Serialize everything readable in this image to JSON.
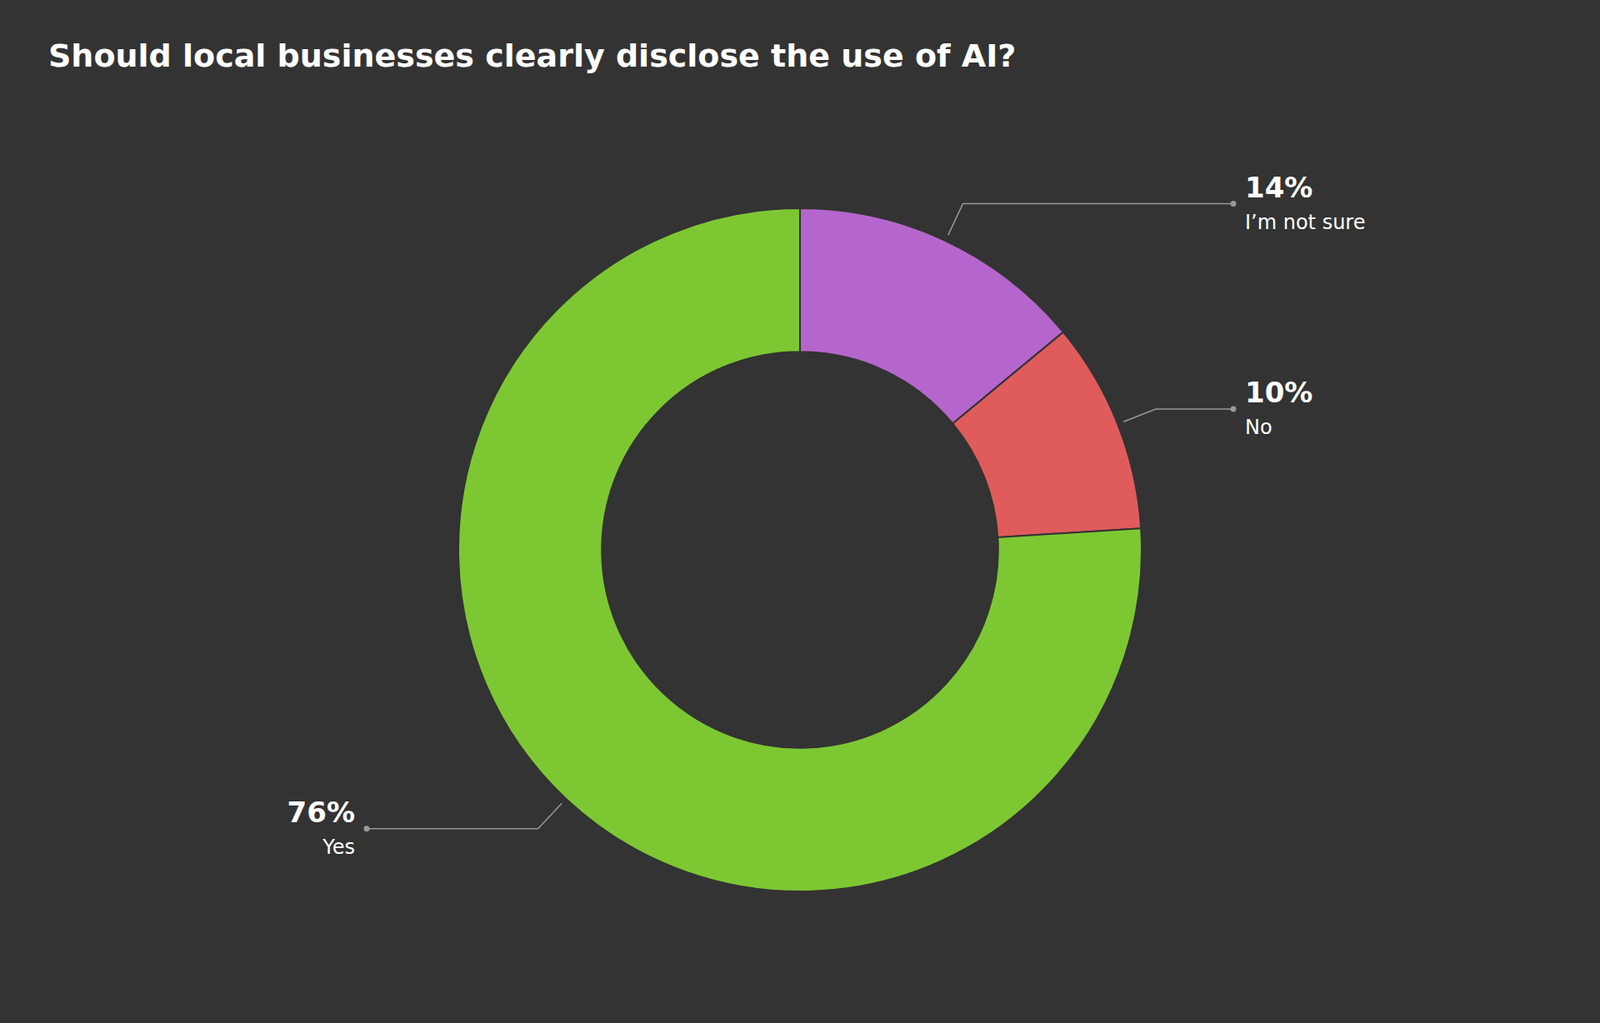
{
  "chart_data": {
    "type": "pie",
    "title": "Should local businesses clearly disclose the use of AI?",
    "categories": [
      "I’m not sure",
      "No",
      "Yes"
    ],
    "values": [
      14,
      10,
      76
    ],
    "value_labels": [
      "14%",
      "10%",
      "76%"
    ],
    "colors": [
      "#b566cc",
      "#e05c5c",
      "#7dc832"
    ],
    "data_labels": true
  }
}
